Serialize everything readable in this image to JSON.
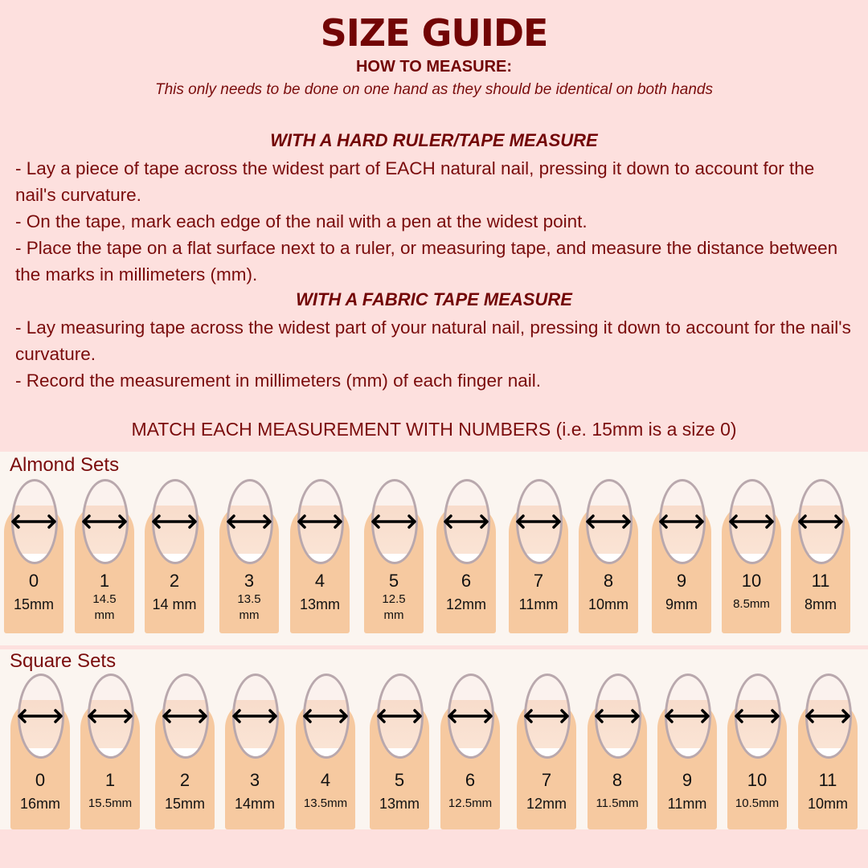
{
  "title": "SIZE GUIDE",
  "how_to": "HOW TO MEASURE:",
  "note": "This only needs to be done on one hand as they should be identical on both hands",
  "hard": {
    "heading": "WITH A HARD RULER/TAPE MEASURE",
    "steps": [
      "- Lay a piece of tape across the widest part of EACH natural nail, pressing it down to account for the nail's curvature.",
      "- On the tape, mark each edge of the nail with a pen at the widest point.",
      "- Place the tape on a flat surface next to a ruler, or measuring tape, and measure the distance between the marks in millimeters (mm)."
    ]
  },
  "fabric": {
    "heading": "WITH A FABRIC TAPE MEASURE",
    "steps": [
      "- Lay measuring tape across the widest part of your natural nail, pressing it down to account for the nail's curvature.",
      "- Record the measurement in millimeters (mm) of each finger nail."
    ]
  },
  "match": "MATCH EACH MEASUREMENT WITH NUMBERS (i.e. 15mm is a size 0)",
  "almond": {
    "label": "Almond Sets",
    "sizes": [
      {
        "n": "0",
        "mm": "15mm"
      },
      {
        "n": "1",
        "mm": "14.5 mm"
      },
      {
        "n": "2",
        "mm": "14 mm"
      },
      {
        "n": "3",
        "mm": "13.5 mm"
      },
      {
        "n": "4",
        "mm": "13mm"
      },
      {
        "n": "5",
        "mm": "12.5 mm"
      },
      {
        "n": "6",
        "mm": "12mm"
      },
      {
        "n": "7",
        "mm": "11mm"
      },
      {
        "n": "8",
        "mm": "10mm"
      },
      {
        "n": "9",
        "mm": "9mm"
      },
      {
        "n": "10",
        "mm": "8.5mm"
      },
      {
        "n": "11",
        "mm": "8mm"
      }
    ]
  },
  "square": {
    "label": "Square Sets",
    "sizes": [
      {
        "n": "0",
        "mm": "16mm"
      },
      {
        "n": "1",
        "mm": "15.5mm"
      },
      {
        "n": "2",
        "mm": "15mm"
      },
      {
        "n": "3",
        "mm": "14mm"
      },
      {
        "n": "4",
        "mm": "13.5mm"
      },
      {
        "n": "5",
        "mm": "13mm"
      },
      {
        "n": "6",
        "mm": "12.5mm"
      },
      {
        "n": "7",
        "mm": "12mm"
      },
      {
        "n": "8",
        "mm": "11.5mm"
      },
      {
        "n": "9",
        "mm": "11mm"
      },
      {
        "n": "10",
        "mm": "10.5mm"
      },
      {
        "n": "11",
        "mm": "10mm"
      }
    ]
  },
  "colors": {
    "title": "#720505",
    "text": "#7a0c0c",
    "background": "#fde0de",
    "panel": "#fbf5f0",
    "skin": "#f6c9a0"
  }
}
